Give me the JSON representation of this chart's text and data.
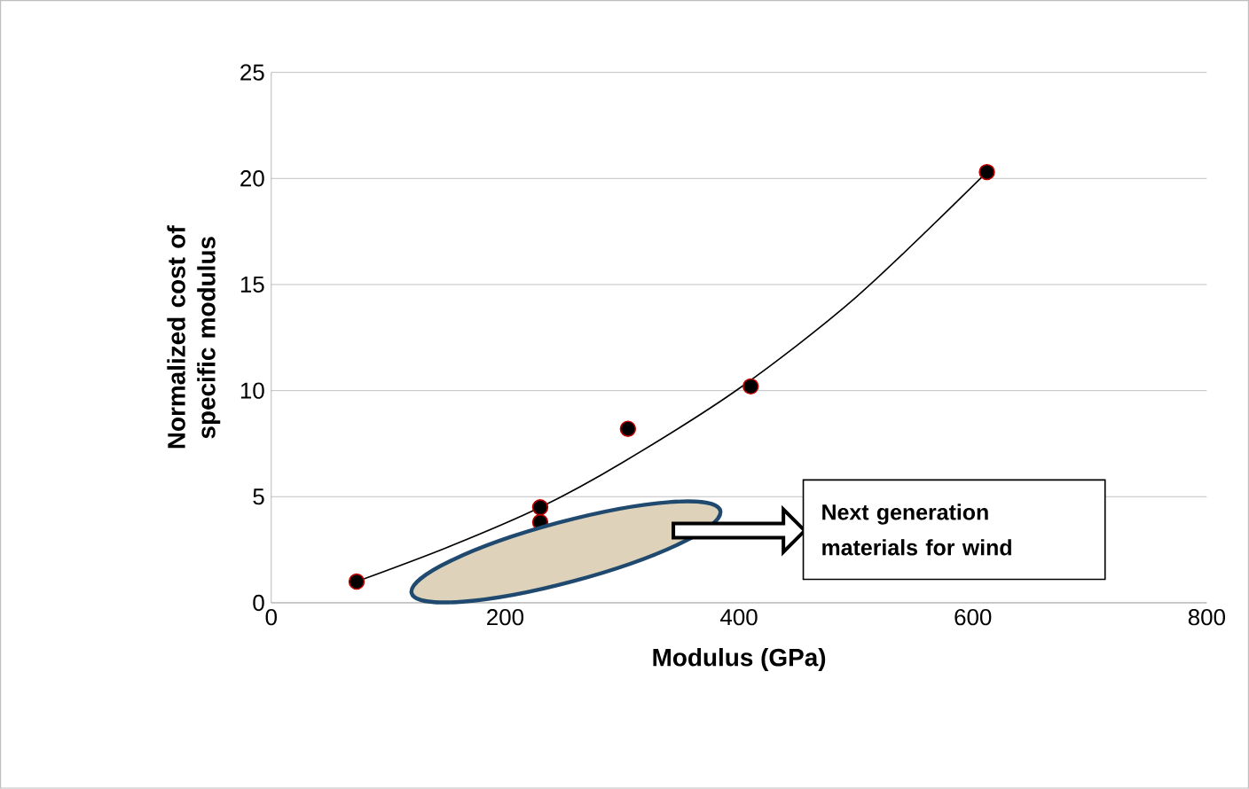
{
  "chart_data": {
    "type": "scatter",
    "xlabel": "Modulus (GPa)",
    "ylabel": "Normalized cost of specific modulus",
    "xlim": [
      0,
      800
    ],
    "xticks": [
      0,
      200,
      400,
      600,
      800
    ],
    "ylim": [
      0,
      25
    ],
    "yticks": [
      0,
      5,
      10,
      15,
      20,
      25
    ],
    "grid": "y",
    "series": [
      {
        "color": "#000000",
        "marker": "circle",
        "x": [
          73,
          230,
          230,
          305,
          410,
          612
        ],
        "values": [
          1.0,
          4.5,
          3.8,
          8.2,
          10.2,
          20.3
        ]
      },
      {
        "type": "line",
        "color": "#000000",
        "x": [
          73,
          150,
          230,
          300,
          400,
          500,
          612
        ],
        "values": [
          1.0,
          2.6,
          4.5,
          6.6,
          10.1,
          14.4,
          20.3
        ]
      }
    ],
    "annotations": [
      "Next generation materials for wind"
    ]
  }
}
